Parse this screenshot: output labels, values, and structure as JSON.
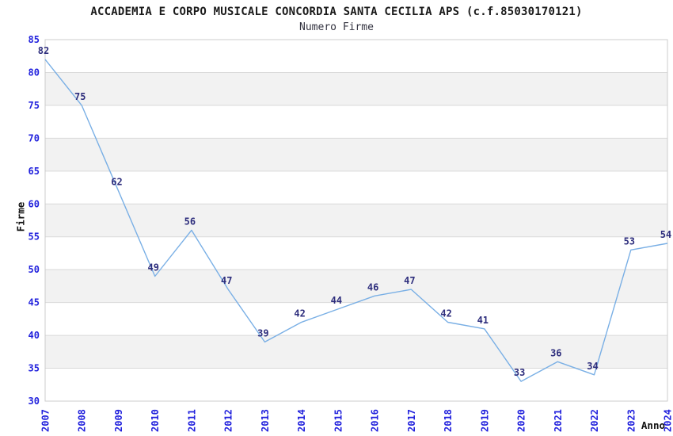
{
  "chart_data": {
    "type": "line",
    "title": "ACCADEMIA E CORPO MUSICALE CONCORDIA SANTA CECILIA APS (c.f.85030170121)",
    "subtitle": "Numero Firme",
    "xlabel": "Anno",
    "ylabel": "Firme",
    "categories": [
      "2007",
      "2008",
      "2009",
      "2010",
      "2011",
      "2012",
      "2013",
      "2014",
      "2015",
      "2016",
      "2017",
      "2018",
      "2019",
      "2020",
      "2021",
      "2022",
      "2023",
      "2024"
    ],
    "values": [
      82,
      75,
      62,
      49,
      56,
      47,
      39,
      42,
      44,
      46,
      47,
      42,
      41,
      33,
      36,
      34,
      53,
      54
    ],
    "ylim": [
      30,
      85
    ],
    "y_ticks": [
      85,
      80,
      75,
      70,
      65,
      60,
      55,
      50,
      45,
      40,
      35,
      30
    ],
    "grid": "horizontal-bands",
    "legend": "none",
    "data_labels_visible": true,
    "colors": {
      "line": "#79afe5",
      "tick_label": "#2222dd",
      "data_label": "#2e2e7d",
      "band_fill": "#f2f2f2",
      "gridline": "#d9d9d9",
      "plot_border": "#cccccc",
      "title_text": "#1a1a1a",
      "subtitle_text": "#333340",
      "axis_title_text": "#111111"
    }
  }
}
